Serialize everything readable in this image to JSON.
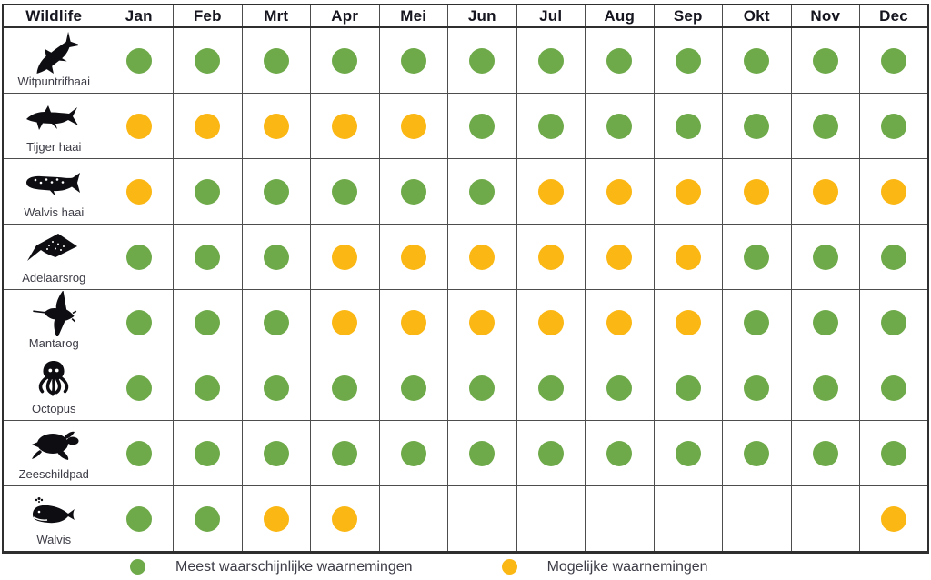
{
  "colors": {
    "green": "#6FAA4A",
    "yellow": "#FBB713",
    "grid_border": "#4d4d4d",
    "outer_border": "#2f2f2f",
    "icon_black": "#0d0d12"
  },
  "chart_data": {
    "type": "table",
    "columns": [
      "Wildlife",
      "Jan",
      "Feb",
      "Mrt",
      "Apr",
      "Mei",
      "Jun",
      "Jul",
      "Aug",
      "Sep",
      "Okt",
      "Nov",
      "Dec"
    ],
    "rows": [
      {
        "label": "Witpuntrifhaai",
        "icon": "whitetip-reef-shark-icon",
        "sightings": [
          "green",
          "green",
          "green",
          "green",
          "green",
          "green",
          "green",
          "green",
          "green",
          "green",
          "green",
          "green"
        ]
      },
      {
        "label": "Tijger haai",
        "icon": "tiger-shark-icon",
        "sightings": [
          "yellow",
          "yellow",
          "yellow",
          "yellow",
          "yellow",
          "green",
          "green",
          "green",
          "green",
          "green",
          "green",
          "green"
        ]
      },
      {
        "label": "Walvis haai",
        "icon": "whale-shark-icon",
        "sightings": [
          "yellow",
          "green",
          "green",
          "green",
          "green",
          "green",
          "yellow",
          "yellow",
          "yellow",
          "yellow",
          "yellow",
          "yellow"
        ]
      },
      {
        "label": "Adelaarsrog",
        "icon": "eagle-ray-icon",
        "sightings": [
          "green",
          "green",
          "green",
          "yellow",
          "yellow",
          "yellow",
          "yellow",
          "yellow",
          "yellow",
          "green",
          "green",
          "green"
        ]
      },
      {
        "label": "Mantarog",
        "icon": "manta-ray-icon",
        "sightings": [
          "green",
          "green",
          "green",
          "yellow",
          "yellow",
          "yellow",
          "yellow",
          "yellow",
          "yellow",
          "green",
          "green",
          "green"
        ]
      },
      {
        "label": "Octopus",
        "icon": "octopus-icon",
        "sightings": [
          "green",
          "green",
          "green",
          "green",
          "green",
          "green",
          "green",
          "green",
          "green",
          "green",
          "green",
          "green"
        ]
      },
      {
        "label": "Zeeschildpad",
        "icon": "sea-turtle-icon",
        "sightings": [
          "green",
          "green",
          "green",
          "green",
          "green",
          "green",
          "green",
          "green",
          "green",
          "green",
          "green",
          "green"
        ]
      },
      {
        "label": "Walvis",
        "icon": "whale-icon",
        "sightings": [
          "green",
          "green",
          "yellow",
          "yellow",
          "",
          "",
          "",
          "",
          "",
          "",
          "",
          "yellow"
        ]
      }
    ],
    "legend": [
      {
        "color_key": "green",
        "hex": "#6FAA4A",
        "label": "Meest waarschijnlijke waarnemingen"
      },
      {
        "color_key": "yellow",
        "hex": "#FBB713",
        "label": "Mogelijke waarnemingen"
      }
    ]
  }
}
